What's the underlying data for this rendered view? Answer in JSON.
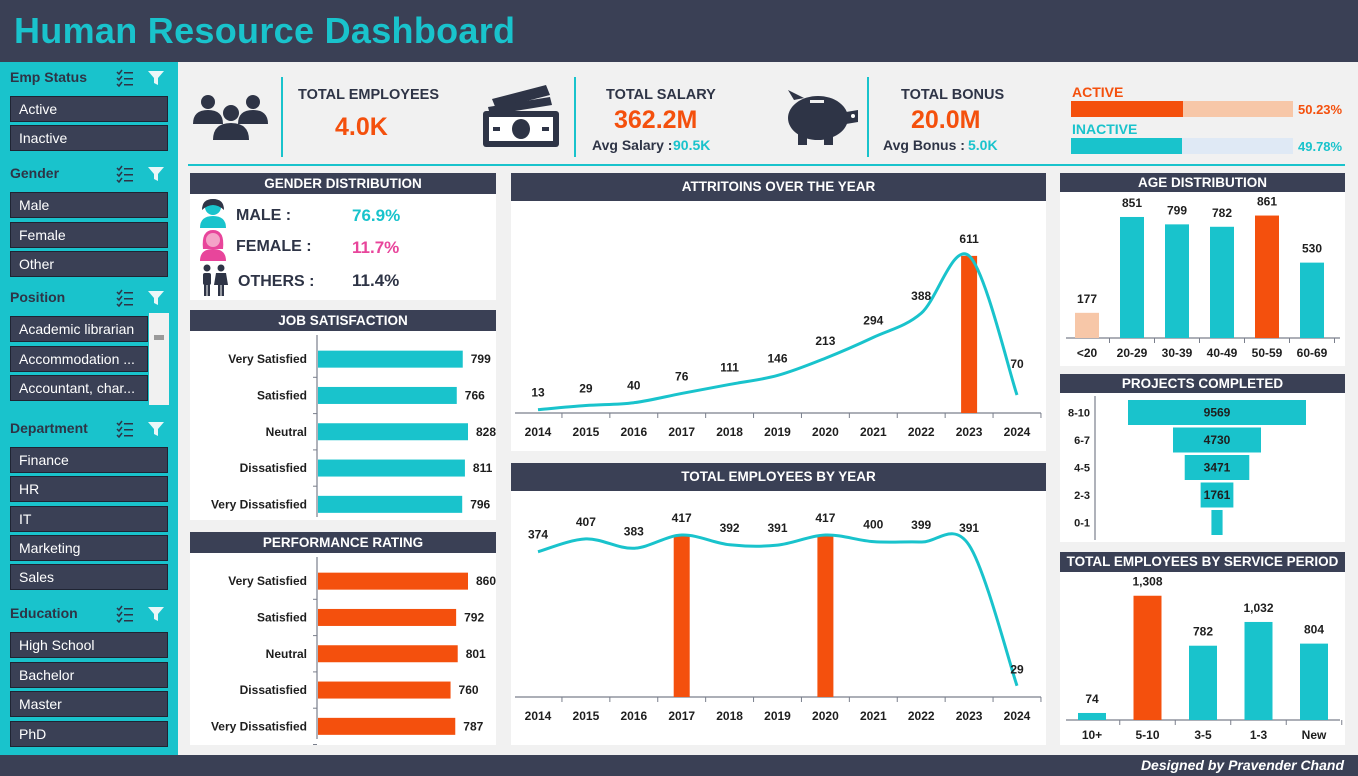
{
  "title": "Human Resource Dashboard",
  "credit": "Designed by Pravender Chand",
  "colors": {
    "teal": "#19c3cc",
    "orange": "#f4500d",
    "navy": "#3a4055",
    "pink": "#e8459b",
    "peach": "#f7c7a8",
    "lightblue": "#dfe9f5"
  },
  "slicers": {
    "emp_status": {
      "title": "Emp Status",
      "items": [
        "Active",
        "Inactive"
      ]
    },
    "gender": {
      "title": "Gender",
      "items": [
        "Male",
        "Female",
        "Other"
      ]
    },
    "position": {
      "title": "Position",
      "items": [
        "Academic librarian",
        "Accommodation ...",
        "Accountant, char..."
      ]
    },
    "department": {
      "title": "Department",
      "items": [
        "Finance",
        "HR",
        "IT",
        "Marketing",
        "Sales"
      ]
    },
    "education": {
      "title": "Education",
      "items": [
        "High School",
        "Bachelor",
        "Master",
        "PhD"
      ]
    }
  },
  "kpis": {
    "total_employees": {
      "label": "TOTAL EMPLOYEES",
      "value": "4.0K"
    },
    "total_salary": {
      "label": "TOTAL SALARY",
      "value": "362.2M",
      "sub_label": "Avg Salary :",
      "sub_value": "90.5K"
    },
    "total_bonus": {
      "label": "TOTAL BONUS",
      "value": "20.0M",
      "sub_label": "Avg Bonus :",
      "sub_value": "5.0K"
    }
  },
  "status": {
    "active": {
      "label": "ACTIVE",
      "pct_text": "50.23%",
      "fraction": 0.5023
    },
    "inactive": {
      "label": "INACTIVE",
      "pct_text": "49.78%",
      "fraction": 0.4978
    }
  },
  "gender_distribution": {
    "title": "GENDER DISTRIBUTION",
    "male": {
      "label": "MALE :",
      "value": "76.9%"
    },
    "female": {
      "label": "FEMALE :",
      "value": "11.7%"
    },
    "others": {
      "label": "OTHERS :",
      "value": "11.4%"
    }
  },
  "panels": {
    "job_satisfaction": "JOB SATISFACTION",
    "performance_rating": "PERFORMANCE RATING",
    "attritions": "ATTRITOINS OVER THE YEAR",
    "employees_by_year": "TOTAL EMPLOYEES BY YEAR",
    "age_distribution": "AGE DISTRIBUTION",
    "projects_completed": "PROJECTS COMPLETED",
    "service_period": "TOTAL EMPLOYEES BY SERVICE PERIOD"
  },
  "chart_data": [
    {
      "id": "job_satisfaction",
      "type": "bar",
      "orientation": "horizontal",
      "title": "JOB SATISFACTION",
      "categories": [
        "Very Satisfied",
        "Satisfied",
        "Neutral",
        "Dissatisfied",
        "Very Dissatisfied"
      ],
      "values": [
        799,
        766,
        828,
        811,
        796
      ],
      "color": "#19c3cc"
    },
    {
      "id": "performance_rating",
      "type": "bar",
      "orientation": "horizontal",
      "title": "PERFORMANCE RATING",
      "categories": [
        "Very Satisfied",
        "Satisfied",
        "Neutral",
        "Dissatisfied",
        "Very Dissatisfied"
      ],
      "values": [
        860,
        792,
        801,
        760,
        787
      ],
      "color": "#f4500d"
    },
    {
      "id": "attritions",
      "type": "line",
      "title": "ATTRITOINS OVER THE YEAR",
      "categories": [
        "2014",
        "2015",
        "2016",
        "2017",
        "2018",
        "2019",
        "2020",
        "2021",
        "2022",
        "2023",
        "2024"
      ],
      "values": [
        13,
        29,
        40,
        76,
        111,
        146,
        213,
        294,
        388,
        611,
        70
      ],
      "highlight_bars": [
        "2023"
      ],
      "ylim": [
        0,
        700
      ]
    },
    {
      "id": "employees_by_year",
      "type": "line",
      "title": "TOTAL EMPLOYEES BY YEAR",
      "categories": [
        "2014",
        "2015",
        "2016",
        "2017",
        "2018",
        "2019",
        "2020",
        "2021",
        "2022",
        "2023",
        "2024"
      ],
      "values": [
        374,
        407,
        383,
        417,
        392,
        391,
        417,
        400,
        399,
        391,
        29
      ],
      "highlight_bars": [
        "2017",
        "2020"
      ],
      "ylim": [
        0,
        430
      ]
    },
    {
      "id": "age_distribution",
      "type": "bar",
      "title": "AGE DISTRIBUTION",
      "categories": [
        "<20",
        "20-29",
        "30-39",
        "40-49",
        "50-59",
        "60-69"
      ],
      "values": [
        177,
        851,
        799,
        782,
        861,
        530
      ],
      "highlight": {
        "<20": "min",
        "50-59": "max"
      },
      "ylim": [
        0,
        900
      ]
    },
    {
      "id": "projects_completed",
      "type": "bar",
      "orientation": "funnel",
      "title": "PROJECTS COMPLETED",
      "categories": [
        "8-10",
        "6-7",
        "4-5",
        "2-3",
        "0-1"
      ],
      "values": [
        9569,
        4730,
        3471,
        1761,
        600
      ],
      "labels": [
        "9569",
        "4730",
        "3471",
        "1761",
        ""
      ]
    },
    {
      "id": "service_period",
      "type": "bar",
      "title": "TOTAL EMPLOYEES BY SERVICE PERIOD",
      "categories": [
        "10+",
        "5-10",
        "3-5",
        "1-3",
        "New"
      ],
      "values": [
        74,
        1308,
        782,
        1032,
        804
      ],
      "labels": [
        "74",
        "1,308",
        "782",
        "1,032",
        "804"
      ],
      "highlight": {
        "5-10": "max"
      },
      "ylim": [
        0,
        1400
      ]
    }
  ]
}
